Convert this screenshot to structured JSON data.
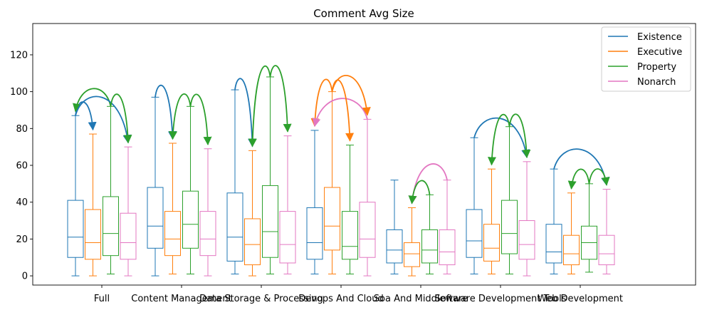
{
  "chart_data": {
    "type": "box",
    "title": "Comment Avg Size",
    "xlabel": "",
    "ylabel": "",
    "ylim": [
      -5,
      137
    ],
    "yticks": [
      0,
      20,
      40,
      60,
      80,
      100,
      120
    ],
    "grid": false,
    "legend": "top-right",
    "categories": [
      "Full",
      "Content Management",
      "Data Storage & Processing",
      "Devops And Cloud",
      "Soa And Middleware",
      "Software Development Tools",
      "Web Development"
    ],
    "series": [
      {
        "name": "Existence",
        "color": "#1f77b4",
        "boxes": [
          {
            "whislo": 0,
            "q1": 10,
            "med": 21,
            "q3": 41,
            "whishi": 87
          },
          {
            "whislo": 0,
            "q1": 15,
            "med": 27,
            "q3": 48,
            "whishi": 97
          },
          {
            "whislo": 1,
            "q1": 8,
            "med": 21,
            "q3": 45,
            "whishi": 101
          },
          {
            "whislo": 1,
            "q1": 9,
            "med": 18,
            "q3": 37,
            "whishi": 79
          },
          {
            "whislo": 1,
            "q1": 7,
            "med": 14,
            "q3": 25,
            "whishi": 52
          },
          {
            "whislo": 1,
            "q1": 10,
            "med": 19,
            "q3": 36,
            "whishi": 75
          },
          {
            "whislo": 1,
            "q1": 7,
            "med": 13,
            "q3": 28,
            "whishi": 58
          }
        ]
      },
      {
        "name": "Executive",
        "color": "#ff7f0e",
        "boxes": [
          {
            "whislo": 0,
            "q1": 9,
            "med": 18,
            "q3": 36,
            "whishi": 77
          },
          {
            "whislo": 1,
            "q1": 11,
            "med": 20,
            "q3": 35,
            "whishi": 72
          },
          {
            "whislo": 0,
            "q1": 6,
            "med": 17,
            "q3": 31,
            "whishi": 68
          },
          {
            "whislo": 1,
            "q1": 14,
            "med": 27,
            "q3": 48,
            "whishi": 100
          },
          {
            "whislo": 0,
            "q1": 5,
            "med": 12,
            "q3": 18,
            "whishi": 37
          },
          {
            "whislo": 1,
            "q1": 8,
            "med": 15,
            "q3": 28,
            "whishi": 58
          },
          {
            "whislo": 1,
            "q1": 6,
            "med": 12,
            "q3": 22,
            "whishi": 45
          }
        ]
      },
      {
        "name": "Property",
        "color": "#2ca02c",
        "boxes": [
          {
            "whislo": 1,
            "q1": 11,
            "med": 23,
            "q3": 43,
            "whishi": 92
          },
          {
            "whislo": 1,
            "q1": 15,
            "med": 28,
            "q3": 46,
            "whishi": 92
          },
          {
            "whislo": 1,
            "q1": 10,
            "med": 24,
            "q3": 49,
            "whishi": 108
          },
          {
            "whislo": 1,
            "q1": 9,
            "med": 16,
            "q3": 35,
            "whishi": 71
          },
          {
            "whislo": 1,
            "q1": 7,
            "med": 14,
            "q3": 25,
            "whishi": 44
          },
          {
            "whislo": 1,
            "q1": 12,
            "med": 23,
            "q3": 41,
            "whishi": 81
          },
          {
            "whislo": 2,
            "q1": 9,
            "med": 18,
            "q3": 27,
            "whishi": 50
          }
        ]
      },
      {
        "name": "Nonarch",
        "color": "#e377c2",
        "boxes": [
          {
            "whislo": 0,
            "q1": 9,
            "med": 18,
            "q3": 34,
            "whishi": 70
          },
          {
            "whislo": 0,
            "q1": 11,
            "med": 20,
            "q3": 35,
            "whishi": 69
          },
          {
            "whislo": 1,
            "q1": 7,
            "med": 17,
            "q3": 35,
            "whishi": 76
          },
          {
            "whislo": 0,
            "q1": 10,
            "med": 20,
            "q3": 40,
            "whishi": 85
          },
          {
            "whislo": 1,
            "q1": 6,
            "med": 13,
            "q3": 25,
            "whishi": 52
          },
          {
            "whislo": 0,
            "q1": 9,
            "med": 17,
            "q3": 30,
            "whishi": 62
          },
          {
            "whislo": 1,
            "q1": 6,
            "med": 12,
            "q3": 22,
            "whishi": 47
          }
        ]
      }
    ],
    "arrows": [
      {
        "group": 0,
        "from": 0,
        "to": 1,
        "color": "#1f77b4"
      },
      {
        "group": 0,
        "from": 2,
        "to": 0,
        "color": "#2ca02c"
      },
      {
        "group": 0,
        "from": 0,
        "to": 3,
        "color": "#1f77b4"
      },
      {
        "group": 0,
        "from": 2,
        "to": 3,
        "color": "#2ca02c"
      },
      {
        "group": 1,
        "from": 0,
        "to": 1,
        "color": "#1f77b4"
      },
      {
        "group": 1,
        "from": 2,
        "to": 1,
        "color": "#2ca02c"
      },
      {
        "group": 1,
        "from": 2,
        "to": 3,
        "color": "#2ca02c"
      },
      {
        "group": 2,
        "from": 0,
        "to": 1,
        "color": "#1f77b4"
      },
      {
        "group": 2,
        "from": 2,
        "to": 1,
        "color": "#2ca02c"
      },
      {
        "group": 2,
        "from": 2,
        "to": 3,
        "color": "#2ca02c"
      },
      {
        "group": 3,
        "from": 1,
        "to": 0,
        "color": "#ff7f0e"
      },
      {
        "group": 3,
        "from": 3,
        "to": 0,
        "color": "#e377c2"
      },
      {
        "group": 3,
        "from": 1,
        "to": 2,
        "color": "#ff7f0e"
      },
      {
        "group": 3,
        "from": 1,
        "to": 3,
        "color": "#ff7f0e"
      },
      {
        "group": 4,
        "from": 3,
        "to": 1,
        "color": "#e377c2"
      },
      {
        "group": 4,
        "from": 2,
        "to": 1,
        "color": "#2ca02c"
      },
      {
        "group": 5,
        "from": 0,
        "to": 3,
        "color": "#1f77b4"
      },
      {
        "group": 5,
        "from": 2,
        "to": 1,
        "color": "#2ca02c"
      },
      {
        "group": 5,
        "from": 2,
        "to": 3,
        "color": "#2ca02c"
      },
      {
        "group": 6,
        "from": 0,
        "to": 3,
        "color": "#1f77b4"
      },
      {
        "group": 6,
        "from": 2,
        "to": 1,
        "color": "#2ca02c"
      },
      {
        "group": 6,
        "from": 2,
        "to": 3,
        "color": "#2ca02c"
      }
    ]
  }
}
